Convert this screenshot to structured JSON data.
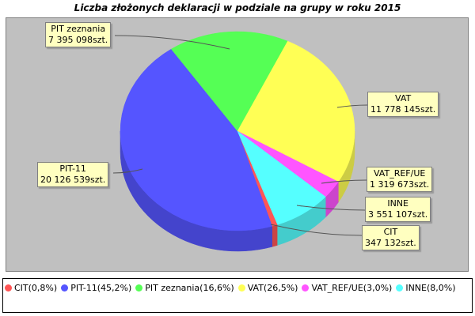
{
  "chart_data": {
    "type": "pie",
    "style": "3d",
    "title": "Liczba złożonych deklaracji w podziale na grupy w roku 2015",
    "unit": "szt.",
    "legend_placement": "bottom",
    "slices": [
      {
        "name": "CIT",
        "value": 347132,
        "label_value": "347 132szt.",
        "percent": "0,8%",
        "color": "#ff5555"
      },
      {
        "name": "PIT-11",
        "value": 20126539,
        "label_value": "20 126 539szt.",
        "percent": "45,2%",
        "color": "#5555ff"
      },
      {
        "name": "PIT zeznania",
        "value": 7395098,
        "label_value": "7 395 098szt.",
        "percent": "16,6%",
        "color": "#55ff55"
      },
      {
        "name": "VAT",
        "value": 11778145,
        "label_value": "11 778 145szt.",
        "percent": "26,5%",
        "color": "#ffff55"
      },
      {
        "name": "VAT_REF/UE",
        "value": 1319673,
        "label_value": "1 319 673szt.",
        "percent": "3,0%",
        "color": "#ff55ff"
      },
      {
        "name": "INNE",
        "value": 3551107,
        "label_value": "3 551 107szt.",
        "percent": "8,0%",
        "color": "#55ffff"
      }
    ],
    "legend": [
      "CIT(0,8%)",
      "PIT-11(45,2%)",
      "PIT zeznania(16,6%)",
      "VAT(26,5%)",
      "VAT_REF/UE(3,0%)",
      "INNE(8,0%)"
    ]
  }
}
